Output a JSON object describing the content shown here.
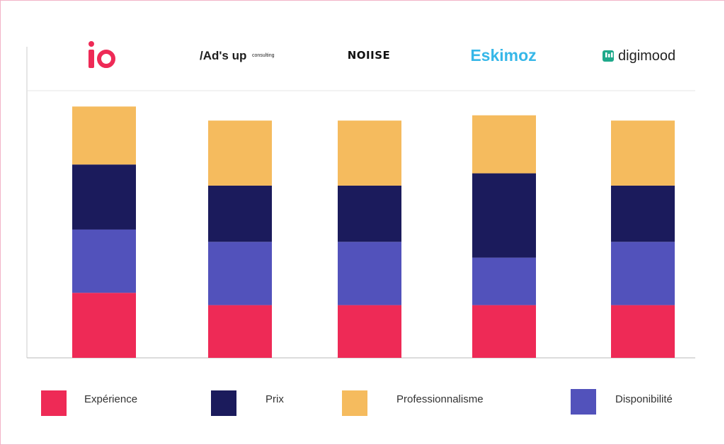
{
  "logos": {
    "io": {
      "text": "io",
      "color": "#ee2a56"
    },
    "adsup": {
      "main": "/Ad's up",
      "sub": "consulting"
    },
    "noiise": {
      "text": "NOIISE"
    },
    "eskimoz": {
      "text": "Eskimoz"
    },
    "digimood": {
      "text": "digimood"
    }
  },
  "chart_data": {
    "type": "bar",
    "stacked": true,
    "categories": [
      "io",
      "Ad's up consulting",
      "NOIISE",
      "Eskimoz",
      "digimood"
    ],
    "series": [
      {
        "name": "Expérience",
        "color": "#ee2a56",
        "values": [
          18.5,
          15,
          15,
          15,
          15
        ]
      },
      {
        "name": "Disponibilité",
        "color": "#5252bb",
        "values": [
          18,
          18,
          18,
          13.5,
          18
        ]
      },
      {
        "name": "Prix",
        "color": "#1b1b5c",
        "values": [
          18.5,
          16,
          16,
          24,
          16
        ]
      },
      {
        "name": "Professionnalisme",
        "color": "#f5bb5e",
        "values": [
          16.5,
          18.5,
          18.5,
          16.5,
          18.5
        ]
      }
    ],
    "ylim": [
      0,
      76
    ],
    "grid": false,
    "legend_position": "bottom",
    "legend_order": [
      "Expérience",
      "Prix",
      "Professionnalisme",
      "Disponibilité"
    ],
    "title": "",
    "xlabel": "",
    "ylabel": ""
  }
}
